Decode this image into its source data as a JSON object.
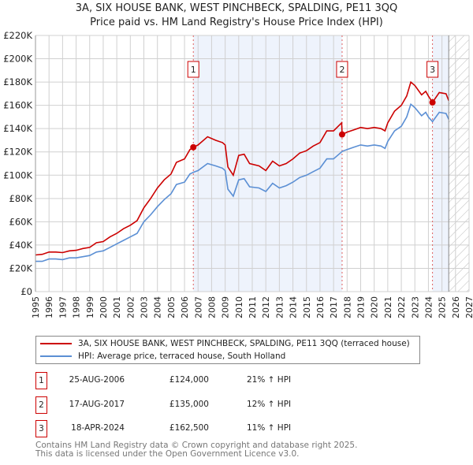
{
  "chart_data": {
    "type": "line",
    "title": "3A, SIX HOUSE BANK, WEST PINCHBECK, SPALDING, PE11 3QQ",
    "subtitle": "Price paid vs. HM Land Registry's House Price Index (HPI)",
    "xlim": [
      1995,
      2027
    ],
    "ylim": [
      0,
      220000
    ],
    "x_ticks": [
      "1995",
      "1996",
      "1997",
      "1998",
      "1999",
      "2000",
      "2001",
      "2002",
      "2003",
      "2004",
      "2005",
      "2006",
      "2007",
      "2008",
      "2009",
      "2010",
      "2011",
      "2012",
      "2013",
      "2014",
      "2015",
      "2016",
      "2017",
      "2018",
      "2019",
      "2020",
      "2021",
      "2022",
      "2023",
      "2024",
      "2025",
      "2026",
      "2027"
    ],
    "y_ticks": [
      {
        "value": 0,
        "label": "£0"
      },
      {
        "value": 20000,
        "label": "£20K"
      },
      {
        "value": 40000,
        "label": "£40K"
      },
      {
        "value": 60000,
        "label": "£60K"
      },
      {
        "value": 80000,
        "label": "£80K"
      },
      {
        "value": 100000,
        "label": "£100K"
      },
      {
        "value": 120000,
        "label": "£120K"
      },
      {
        "value": 140000,
        "label": "£140K"
      },
      {
        "value": 160000,
        "label": "£160K"
      },
      {
        "value": 180000,
        "label": "£180K"
      },
      {
        "value": 200000,
        "label": "£200K"
      },
      {
        "value": 220000,
        "label": "£220K"
      }
    ],
    "grid": true,
    "shaded_ranges": [
      [
        2006.65,
        2017.63
      ],
      [
        2024.3,
        2025.5
      ]
    ],
    "forecast_hatch_from": 2025.5,
    "series": [
      {
        "name": "3A, SIX HOUSE BANK, WEST PINCHBECK, SPALDING, PE11 3QQ (terraced house)",
        "color": "#cc0000",
        "x": [
          1995.0,
          1995.5,
          1996.0,
          1996.5,
          1997.0,
          1997.5,
          1998.0,
          1998.5,
          1999.0,
          1999.5,
          2000.0,
          2000.5,
          2001.0,
          2001.5,
          2002.0,
          2002.5,
          2003.0,
          2003.5,
          2004.0,
          2004.5,
          2005.0,
          2005.4,
          2006.0,
          2006.4,
          2006.65,
          2007.0,
          2007.7,
          2008.3,
          2008.8,
          2009.0,
          2009.2,
          2009.6,
          2010.0,
          2010.4,
          2010.8,
          2011.5,
          2012.0,
          2012.5,
          2013.0,
          2013.5,
          2014.0,
          2014.5,
          2015.0,
          2015.5,
          2016.0,
          2016.5,
          2017.0,
          2017.6,
          2017.63,
          2018.0,
          2018.5,
          2019.0,
          2019.5,
          2020.0,
          2020.5,
          2020.8,
          2021.0,
          2021.5,
          2022.0,
          2022.4,
          2022.7,
          2023.0,
          2023.5,
          2023.8,
          2024.0,
          2024.3,
          2024.8,
          2025.3,
          2025.5
        ],
        "y": [
          31500,
          32000,
          34000,
          34000,
          33500,
          35000,
          35500,
          37000,
          38000,
          42000,
          43000,
          47000,
          50000,
          54000,
          57000,
          61000,
          72000,
          80000,
          89000,
          96000,
          101000,
          111000,
          114000,
          122000,
          124000,
          126000,
          133000,
          130000,
          128000,
          126000,
          107000,
          100000,
          117000,
          118000,
          110000,
          108000,
          104000,
          112000,
          108000,
          110000,
          114000,
          119000,
          121000,
          125000,
          128000,
          138000,
          138000,
          145000,
          135000,
          137000,
          139000,
          141000,
          140000,
          141000,
          140000,
          138000,
          145000,
          155000,
          160000,
          168000,
          180000,
          177000,
          169000,
          172000,
          168000,
          162500,
          171000,
          170000,
          164000
        ]
      },
      {
        "name": "HPI: Average price, terraced house, South Holland",
        "color": "#5b8fd4",
        "x": [
          1995.0,
          1995.5,
          1996.0,
          1996.5,
          1997.0,
          1997.5,
          1998.0,
          1998.5,
          1999.0,
          1999.5,
          2000.0,
          2000.5,
          2001.0,
          2001.5,
          2002.0,
          2002.5,
          2003.0,
          2003.5,
          2004.0,
          2004.5,
          2005.0,
          2005.4,
          2006.0,
          2006.4,
          2006.65,
          2007.0,
          2007.7,
          2008.3,
          2008.8,
          2009.0,
          2009.2,
          2009.6,
          2010.0,
          2010.4,
          2010.8,
          2011.5,
          2012.0,
          2012.5,
          2013.0,
          2013.5,
          2014.0,
          2014.5,
          2015.0,
          2015.5,
          2016.0,
          2016.5,
          2017.0,
          2017.6,
          2017.63,
          2018.0,
          2018.5,
          2019.0,
          2019.5,
          2020.0,
          2020.5,
          2020.8,
          2021.0,
          2021.5,
          2022.0,
          2022.4,
          2022.7,
          2023.0,
          2023.5,
          2023.8,
          2024.0,
          2024.3,
          2024.8,
          2025.3,
          2025.5
        ],
        "y": [
          26000,
          26000,
          28000,
          28000,
          27500,
          29000,
          29000,
          30000,
          31000,
          34000,
          35000,
          38000,
          41000,
          44000,
          47000,
          50000,
          60000,
          66000,
          73000,
          79000,
          84000,
          92000,
          94000,
          101000,
          102500,
          104000,
          110000,
          108000,
          106000,
          104000,
          88000,
          82000,
          96000,
          97000,
          90000,
          89000,
          86000,
          93000,
          89000,
          91000,
          94000,
          98000,
          100000,
          103000,
          106000,
          114000,
          114000,
          120000,
          120500,
          122000,
          124000,
          126000,
          125000,
          126000,
          125000,
          123000,
          129000,
          138000,
          142000,
          150000,
          161000,
          158000,
          151000,
          154000,
          150000,
          146000,
          154000,
          153000,
          148000
        ]
      }
    ],
    "sales": [
      {
        "num": "1",
        "x": 2006.65,
        "y": 124000,
        "date": "25-AUG-2006",
        "price": "£124,000",
        "hpi": "21% ↑ HPI"
      },
      {
        "num": "2",
        "x": 2017.63,
        "y": 135000,
        "date": "17-AUG-2017",
        "price": "£135,000",
        "hpi": "12% ↑ HPI"
      },
      {
        "num": "3",
        "x": 2024.3,
        "y": 162500,
        "date": "18-APR-2024",
        "price": "£162,500",
        "hpi": "11% ↑ HPI"
      }
    ],
    "legend_placement": "bottom"
  },
  "footer": {
    "line1": "Contains HM Land Registry data © Crown copyright and database right 2025.",
    "line2": "This data is licensed under the Open Government Licence v3.0."
  }
}
